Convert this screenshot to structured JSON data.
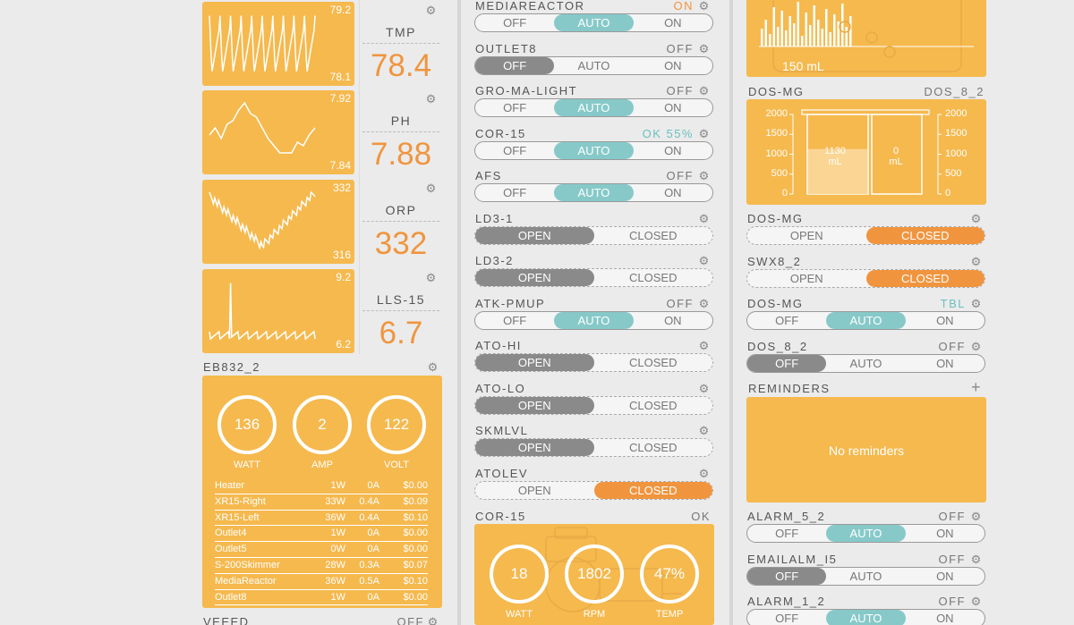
{
  "probes": [
    {
      "name": "TMP",
      "value": "78.4",
      "hi": "79.2",
      "lo": "78.1"
    },
    {
      "name": "PH",
      "value": "7.88",
      "hi": "7.92",
      "lo": "7.84"
    },
    {
      "name": "ORP",
      "value": "332",
      "hi": "332",
      "lo": "316"
    },
    {
      "name": "LLS-15",
      "value": "6.7",
      "hi": "9.2",
      "lo": "6.2"
    }
  ],
  "eb832": {
    "title": "EB832_2",
    "gauges": [
      {
        "value": "136",
        "label": "WATT"
      },
      {
        "value": "2",
        "label": "AMP"
      },
      {
        "value": "122",
        "label": "VOLT"
      }
    ],
    "rows": [
      [
        "Heater",
        "1W",
        "0A",
        "$0.00"
      ],
      [
        "XR15-Right",
        "33W",
        "0.4A",
        "$0.09"
      ],
      [
        "XR15-Left",
        "36W",
        "0.4A",
        "$0.10"
      ],
      [
        "Outlet4",
        "1W",
        "0A",
        "$0.00"
      ],
      [
        "Outlet5",
        "0W",
        "0A",
        "$0.00"
      ],
      [
        "S-200Skimmer",
        "28W",
        "0.3A",
        "$0.07"
      ],
      [
        "MediaReactor",
        "36W",
        "0.5A",
        "$0.10"
      ],
      [
        "Outlet8",
        "1W",
        "0A",
        "$0.00"
      ]
    ]
  },
  "veeed": {
    "label": "VEEED",
    "status": "OFF"
  },
  "outlets_mid": [
    {
      "label": "MEDIAREACTOR",
      "status": "ON",
      "status_color": "#f0953e",
      "type": "switch",
      "active": "AUTO",
      "opts": [
        "OFF",
        "AUTO",
        "ON"
      ]
    },
    {
      "label": "OUTLET8",
      "status": "OFF",
      "type": "switch",
      "active": "OFF",
      "opts": [
        "OFF",
        "AUTO",
        "ON"
      ]
    },
    {
      "label": "GRO-MA-LIGHT",
      "status": "OFF",
      "type": "switch",
      "active": "AUTO",
      "opts": [
        "OFF",
        "AUTO",
        "ON"
      ]
    },
    {
      "label": "COR-15",
      "status": "OK 55%",
      "status_color": "#6cbfc0",
      "type": "switch",
      "active": "AUTO",
      "opts": [
        "OFF",
        "AUTO",
        "ON"
      ]
    },
    {
      "label": "AFS",
      "status": "OFF",
      "type": "switch",
      "active": "AUTO",
      "opts": [
        "OFF",
        "AUTO",
        "ON"
      ]
    },
    {
      "label": "LD3-1",
      "status": "",
      "type": "oc",
      "active": "OPEN",
      "opts": [
        "OPEN",
        "CLOSED"
      ]
    },
    {
      "label": "LD3-2",
      "status": "",
      "type": "oc",
      "active": "OPEN",
      "opts": [
        "OPEN",
        "CLOSED"
      ]
    },
    {
      "label": "ATK-PMUP",
      "status": "OFF",
      "type": "switch",
      "active": "AUTO",
      "opts": [
        "OFF",
        "AUTO",
        "ON"
      ]
    },
    {
      "label": "ATO-HI",
      "status": "",
      "type": "oc",
      "active": "OPEN",
      "opts": [
        "OPEN",
        "CLOSED"
      ]
    },
    {
      "label": "ATO-LO",
      "status": "",
      "type": "oc",
      "active": "OPEN",
      "opts": [
        "OPEN",
        "CLOSED"
      ]
    },
    {
      "label": "SKMLVL",
      "status": "",
      "type": "oc",
      "active": "OPEN",
      "opts": [
        "OPEN",
        "CLOSED"
      ]
    },
    {
      "label": "ATOLEV",
      "status": "",
      "type": "oc",
      "active": "CLOSED",
      "opts": [
        "OPEN",
        "CLOSED"
      ]
    }
  ],
  "cor15": {
    "title": "COR-15",
    "status": "OK",
    "gauges": [
      {
        "value": "18",
        "label": "WATT"
      },
      {
        "value": "1802",
        "label": "RPM"
      },
      {
        "value": "47%",
        "label": "TEMP"
      }
    ]
  },
  "dos_top": {
    "volume_label": "150 mL"
  },
  "dos_header": {
    "left": "DOS-MG",
    "right": "DOS_8_2"
  },
  "dos_chart": {
    "ticks": [
      "2000",
      "1500",
      "1000",
      "500",
      "0"
    ],
    "left_value": "1130",
    "left_unit": "mL",
    "right_value": "0",
    "right_unit": "mL",
    "left_fill": 1130,
    "max": 2000
  },
  "outlets_right": [
    {
      "label": "DOS-MG",
      "status": "",
      "type": "oc",
      "active": "CLOSED",
      "opts": [
        "OPEN",
        "CLOSED"
      ]
    },
    {
      "label": "SWX8_2",
      "status": "",
      "type": "oc",
      "active": "CLOSED",
      "opts": [
        "OPEN",
        "CLOSED"
      ]
    },
    {
      "label": "DOS-MG",
      "status": "TBL",
      "status_color": "#6cbfc0",
      "type": "switch",
      "active": "AUTO",
      "opts": [
        "OFF",
        "AUTO",
        "ON"
      ]
    },
    {
      "label": "DOS_8_2",
      "status": "OFF",
      "type": "switch",
      "active": "OFF",
      "opts": [
        "OFF",
        "AUTO",
        "ON"
      ]
    }
  ],
  "reminders": {
    "title": "REMINDERS",
    "plus": "+",
    "empty": "No reminders"
  },
  "alarms": [
    {
      "label": "ALARM_5_2",
      "status": "OFF",
      "type": "switch",
      "active": "AUTO",
      "opts": [
        "OFF",
        "AUTO",
        "ON"
      ]
    },
    {
      "label": "EMAILALM_I5",
      "status": "OFF",
      "type": "switch",
      "active": "OFF",
      "opts": [
        "OFF",
        "AUTO",
        "ON"
      ]
    },
    {
      "label": "ALARM_1_2",
      "status": "OFF",
      "type": "switch",
      "active": "AUTO",
      "opts": [
        "OFF",
        "AUTO",
        "ON"
      ]
    }
  ]
}
